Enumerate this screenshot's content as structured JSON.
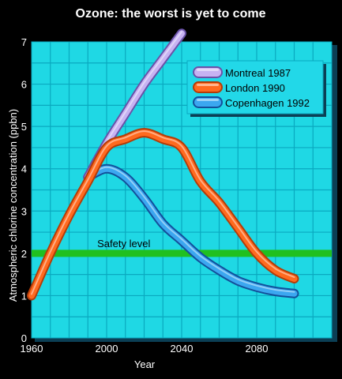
{
  "chart_data": {
    "type": "line",
    "title": "Ozone: the worst is yet to come",
    "xlabel": "Year",
    "ylabel": "Atmospheric chlorine concentration (ppbn)",
    "xlim": [
      1960,
      2120
    ],
    "ylim": [
      0,
      7
    ],
    "x_ticks": [
      1960,
      2000,
      2040,
      2080
    ],
    "y_ticks": [
      0,
      1,
      2,
      3,
      4,
      5,
      6,
      7
    ],
    "grid": true,
    "legend_position": "top-right",
    "annotation": "Safety level",
    "safety_level": 2,
    "colors": {
      "background": "#000000",
      "plot_background": "#1fd8e4",
      "grid": "#0aa9bf",
      "safety_line": "#20c020",
      "legend_background": "#22d8e8"
    },
    "series": [
      {
        "name": "Montreal 1987",
        "color": "#c7b2f2",
        "edge": "#6a52a8",
        "x": [
          1990,
          2000,
          2010,
          2020,
          2030,
          2040
        ],
        "y": [
          3.8,
          4.6,
          5.3,
          6.0,
          6.6,
          7.2
        ]
      },
      {
        "name": "London 1990",
        "color": "#ff6a1f",
        "edge": "#b43c08",
        "x": [
          1960,
          1970,
          1980,
          1990,
          2000,
          2010,
          2020,
          2030,
          2040,
          2050,
          2060,
          2070,
          2080,
          2090,
          2100
        ],
        "y": [
          1.0,
          2.0,
          2.9,
          3.7,
          4.5,
          4.7,
          4.85,
          4.7,
          4.5,
          3.7,
          3.2,
          2.6,
          2.0,
          1.6,
          1.4
        ]
      },
      {
        "name": "Copenhagen 1992",
        "color": "#3ba7f0",
        "edge": "#13509a",
        "x": [
          1990,
          2000,
          2010,
          2020,
          2030,
          2040,
          2050,
          2060,
          2070,
          2080,
          2090,
          2100
        ],
        "y": [
          3.8,
          4.0,
          3.8,
          3.3,
          2.7,
          2.3,
          1.9,
          1.6,
          1.35,
          1.2,
          1.1,
          1.05
        ]
      }
    ]
  }
}
